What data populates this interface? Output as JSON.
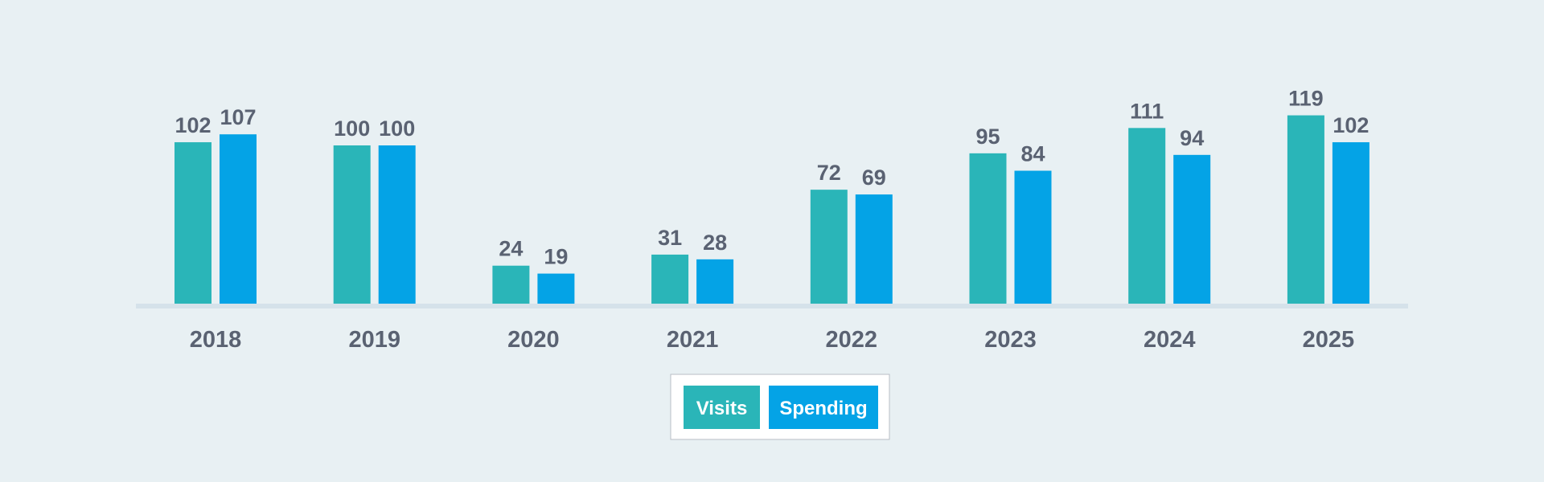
{
  "chart_data": {
    "type": "bar",
    "categories": [
      "2018",
      "2019",
      "2020",
      "2021",
      "2022",
      "2023",
      "2024",
      "2025"
    ],
    "series": [
      {
        "name": "Visits",
        "color": "#2ab5b8",
        "values": [
          102,
          100,
          24,
          31,
          72,
          95,
          111,
          119
        ]
      },
      {
        "name": "Spending",
        "color": "#04a3e6",
        "values": [
          107,
          100,
          19,
          28,
          69,
          84,
          94,
          102
        ]
      }
    ]
  }
}
